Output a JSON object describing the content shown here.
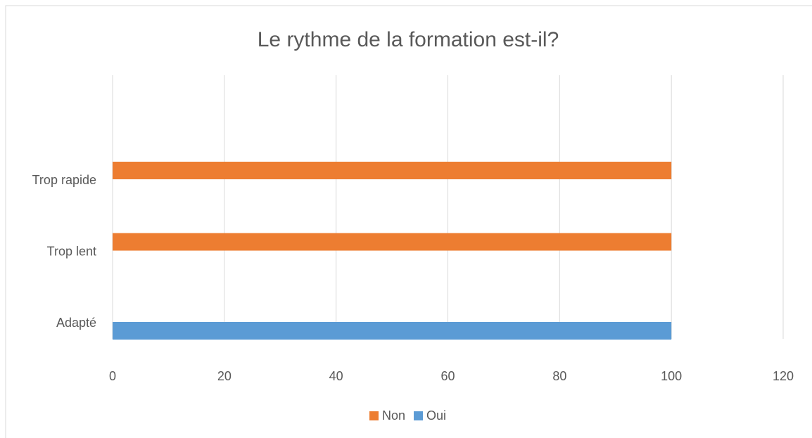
{
  "chart_data": {
    "type": "barh",
    "title": "Le rythme de la formation est-il?",
    "categories": [
      "Adapté",
      "Trop lent",
      "Trop rapide"
    ],
    "series": [
      {
        "name": "Non",
        "color": "#ed7d31",
        "values": [
          null,
          100,
          100
        ]
      },
      {
        "name": "Oui",
        "color": "#5b9bd5",
        "values": [
          100,
          null,
          null
        ]
      }
    ],
    "xlim": [
      0,
      120
    ],
    "xticks": [
      0,
      20,
      40,
      60,
      80,
      100,
      120
    ],
    "grid": true,
    "legend": "bottom"
  }
}
